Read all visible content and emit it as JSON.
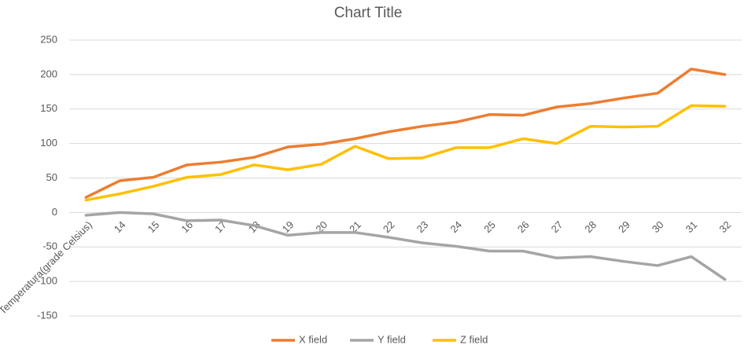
{
  "chart_data": {
    "type": "line",
    "title": "Chart Title",
    "categories": [
      "Temperatura(grade Celsius)",
      "14",
      "15",
      "16",
      "17",
      "18",
      "19",
      "20",
      "21",
      "22",
      "23",
      "24",
      "25",
      "26",
      "27",
      "28",
      "29",
      "30",
      "31",
      "32"
    ],
    "series": [
      {
        "name": "X field",
        "color": "#ed7d31",
        "values": [
          22,
          46,
          51,
          69,
          73,
          80,
          95,
          99,
          107,
          117,
          125,
          131,
          142,
          141,
          153,
          158,
          166,
          173,
          208,
          200
        ]
      },
      {
        "name": "Y field",
        "color": "#a5a5a5",
        "values": [
          -4,
          0,
          -2,
          -12,
          -11,
          -19,
          -33,
          -29,
          -29,
          -36,
          -44,
          -49,
          -56,
          -56,
          -66,
          -64,
          -71,
          -77,
          -64,
          -97
        ]
      },
      {
        "name": "Z field",
        "color": "#ffc000",
        "values": [
          18,
          27,
          38,
          51,
          55,
          69,
          62,
          70,
          96,
          78,
          79,
          94,
          94,
          107,
          100,
          125,
          124,
          125,
          155,
          154
        ]
      }
    ],
    "ylim": [
      -150,
      250
    ],
    "yticks": [
      -150,
      -100,
      -50,
      0,
      50,
      100,
      150,
      200,
      250
    ],
    "grid": true,
    "legend": "bottom"
  }
}
